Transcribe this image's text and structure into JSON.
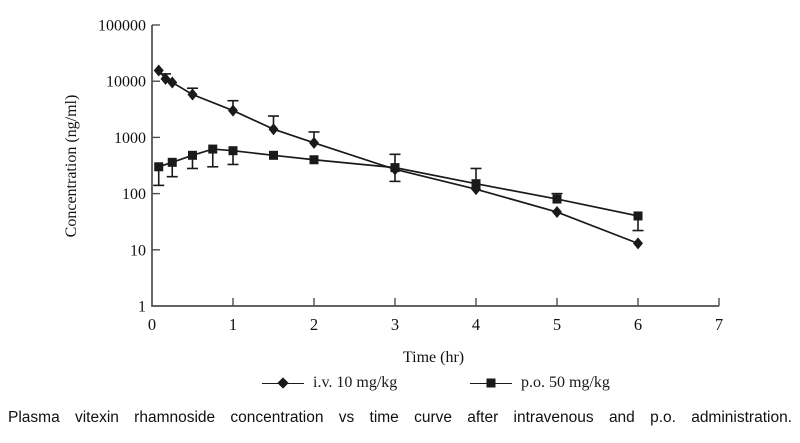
{
  "figure": {
    "caption": "Plasma vitexin rhamnoside concentration vs time curve after intravenous and p.o. administration.",
    "background": "#ffffff",
    "ink_color": "#1a1a1a",
    "axis_color": "#4d4d4d"
  },
  "chart_data": {
    "type": "line",
    "title": "",
    "xlabel": "Time (hr)",
    "ylabel": "Concentration (ng/ml)",
    "x_axis": {
      "min": 0,
      "max": 7,
      "ticks": [
        0,
        1,
        2,
        3,
        4,
        5,
        6,
        7
      ],
      "scale": "linear"
    },
    "y_axis": {
      "min": 1,
      "max": 100000,
      "ticks": [
        1,
        10,
        100,
        1000,
        10000,
        100000
      ],
      "tick_labels": [
        "1",
        "10",
        "100",
        "1000",
        "10000",
        "100000"
      ],
      "scale": "log"
    },
    "grid": false,
    "legend_position": "bottom",
    "series": [
      {
        "name": "i.v. 10 mg/kg",
        "marker": "diamond",
        "color": "#1a1a1a",
        "x": [
          0.083,
          0.167,
          0.25,
          0.5,
          1,
          1.5,
          2,
          3,
          4,
          5,
          6
        ],
        "y": [
          15500,
          11000,
          9500,
          5800,
          3000,
          1400,
          800,
          270,
          120,
          47,
          13
        ],
        "err_hi": [
          null,
          13500,
          null,
          7500,
          4500,
          2400,
          1250,
          null,
          null,
          null,
          null
        ],
        "err_lo": [
          null,
          null,
          null,
          null,
          null,
          null,
          null,
          165,
          null,
          null,
          null
        ]
      },
      {
        "name": "p.o. 50 mg/kg",
        "marker": "square",
        "color": "#1a1a1a",
        "x": [
          0.083,
          0.25,
          0.5,
          0.75,
          1,
          1.5,
          2,
          3,
          4,
          5,
          6
        ],
        "y": [
          300,
          360,
          480,
          620,
          580,
          480,
          400,
          290,
          150,
          80,
          40
        ],
        "err_hi": [
          null,
          null,
          null,
          null,
          null,
          null,
          null,
          500,
          280,
          100,
          null
        ],
        "err_lo": [
          140,
          200,
          280,
          300,
          330,
          null,
          null,
          null,
          null,
          null,
          22
        ]
      }
    ]
  }
}
